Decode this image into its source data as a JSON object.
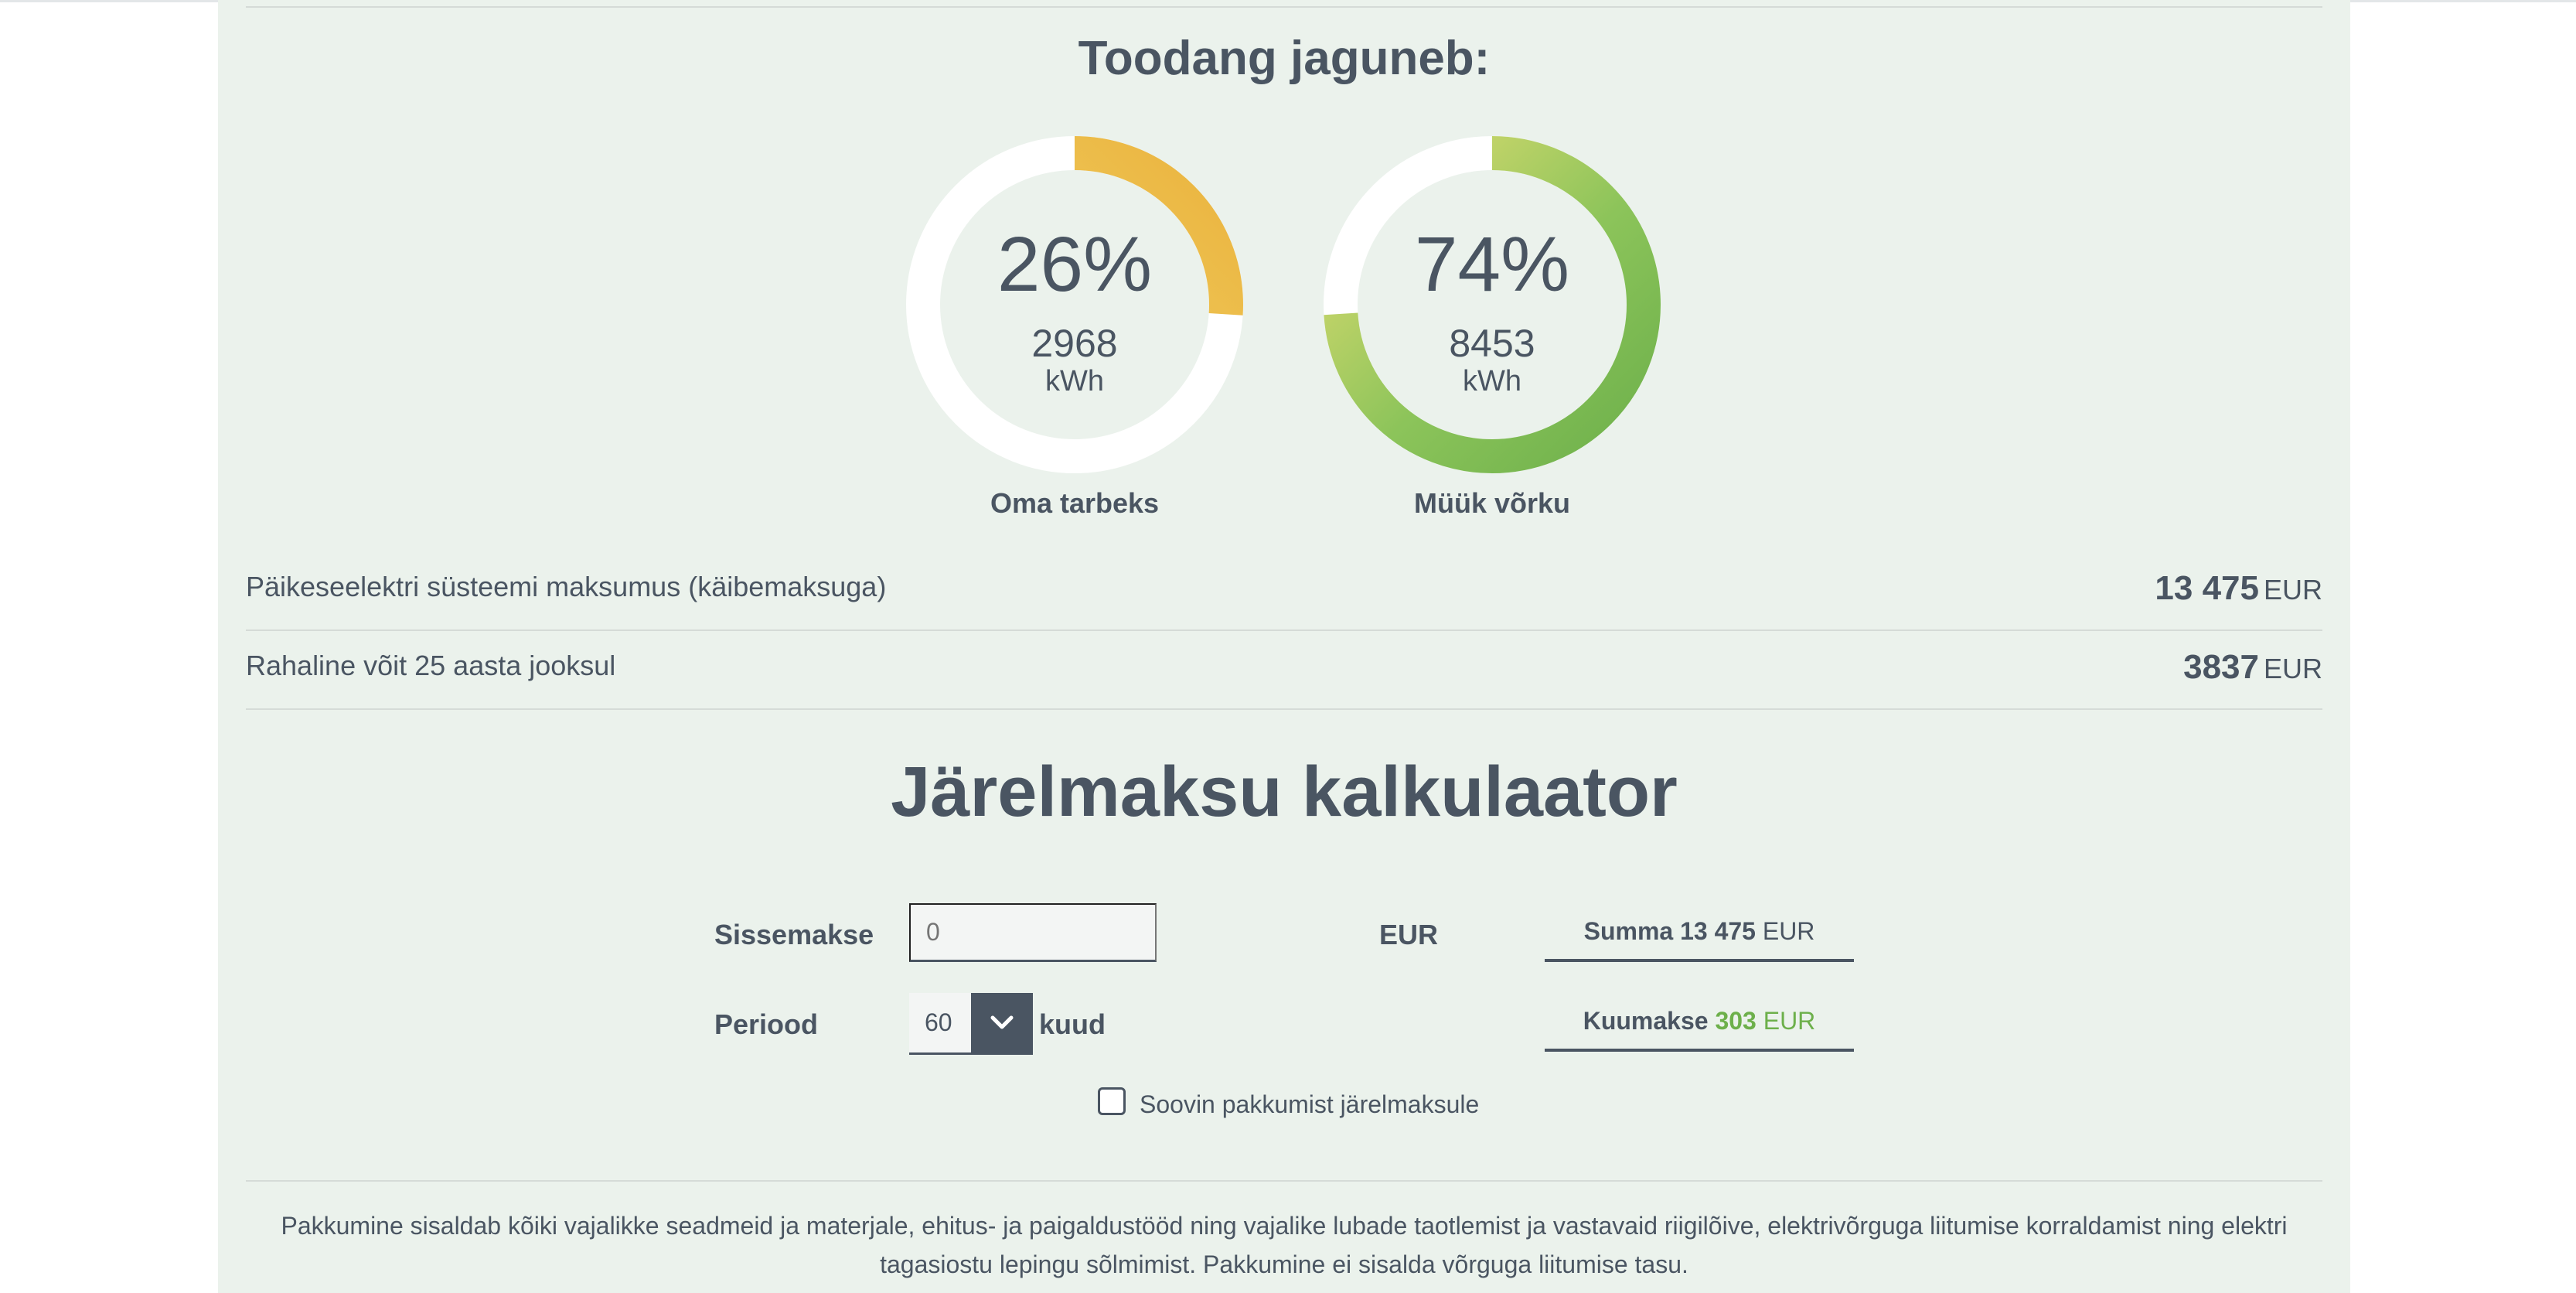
{
  "production": {
    "title": "Toodang jaguneb:",
    "gauges": [
      {
        "percent_label": "26%",
        "percent": 26,
        "kwh": "2968",
        "unit": "kWh",
        "label": "Oma tarbeks"
      },
      {
        "percent_label": "74%",
        "percent": 74,
        "kwh": "8453",
        "unit": "kWh",
        "label": "Müük võrku"
      }
    ]
  },
  "rows": [
    {
      "label": "Päikeseelektri süsteemi maksumus (käibemaksuga)",
      "value": "13 475",
      "currency": "EUR"
    },
    {
      "label": "Rahaline võit 25 aasta jooksul",
      "value": "3837",
      "currency": "EUR"
    }
  ],
  "calculator": {
    "title": "Järelmaksu kalkulaator",
    "down_payment_label": "Sissemakse",
    "down_payment_placeholder": "0",
    "down_payment_unit": "EUR",
    "period_label": "Periood",
    "period_value": "60",
    "period_unit": "kuud",
    "sum_label": "Summa",
    "sum_value": "13 475",
    "sum_currency": "EUR",
    "monthly_label": "Kuumakse",
    "monthly_value": "303",
    "monthly_currency": "EUR",
    "checkbox_label": "Soovin pakkumist järelmaksule"
  },
  "footer": {
    "line1": "Pakkumine sisaldab kõiki vajalikke seadmeid ja materjale, ehitus- ja paigaldustööd ning vajalike lubade taotlemist ja vastavaid riigilõive, elektrivõrguga liitumise korraldamist ning elektri",
    "line2": "tagasiostu lepingu sõlmimist. Pakkumine ei sisalda võrguga liitumise tasu."
  },
  "colors": {
    "text": "#4a5562",
    "panel_bg": "#ebf2ec",
    "accent_green": "#6db04b",
    "gauge_orange": "#edb842",
    "gauge_yellow": "#f3d86b"
  }
}
